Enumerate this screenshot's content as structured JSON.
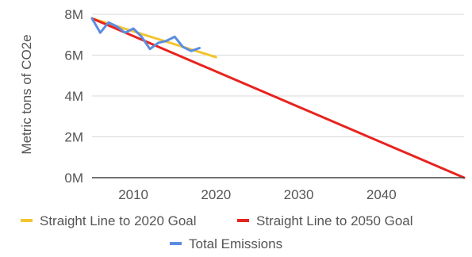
{
  "chart_data": {
    "type": "line",
    "title": "",
    "xlabel": "",
    "ylabel": "Metric tons of CO2e",
    "xlim": [
      2005,
      2050
    ],
    "ylim": [
      0,
      8000000
    ],
    "x_ticks": [
      {
        "value": 2010,
        "label": "2010"
      },
      {
        "value": 2020,
        "label": "2020"
      },
      {
        "value": 2030,
        "label": "2030"
      },
      {
        "value": 2040,
        "label": "2040"
      }
    ],
    "y_ticks": [
      {
        "value": 0,
        "label": "0M"
      },
      {
        "value": 2000000,
        "label": "2M"
      },
      {
        "value": 4000000,
        "label": "4M"
      },
      {
        "value": 6000000,
        "label": "6M"
      },
      {
        "value": 8000000,
        "label": "8M"
      }
    ],
    "grid": true,
    "legend_position": "bottom",
    "series": [
      {
        "name": "Straight Line to 2020 Goal",
        "color": "#f4c430",
        "x": [
          2005,
          2020
        ],
        "y": [
          7800000,
          5900000
        ]
      },
      {
        "name": "Straight Line to 2050 Goal",
        "color": "#e8231f",
        "x": [
          2005,
          2050
        ],
        "y": [
          7800000,
          0
        ]
      },
      {
        "name": "Total Emissions",
        "color": "#5a8de0",
        "x": [
          2005,
          2006,
          2007,
          2008,
          2009,
          2010,
          2011,
          2012,
          2013,
          2014,
          2015,
          2016,
          2017,
          2018
        ],
        "y": [
          7800000,
          7100000,
          7600000,
          7400000,
          7100000,
          7300000,
          6900000,
          6300000,
          6600000,
          6700000,
          6900000,
          6400000,
          6200000,
          6350000
        ]
      }
    ]
  }
}
